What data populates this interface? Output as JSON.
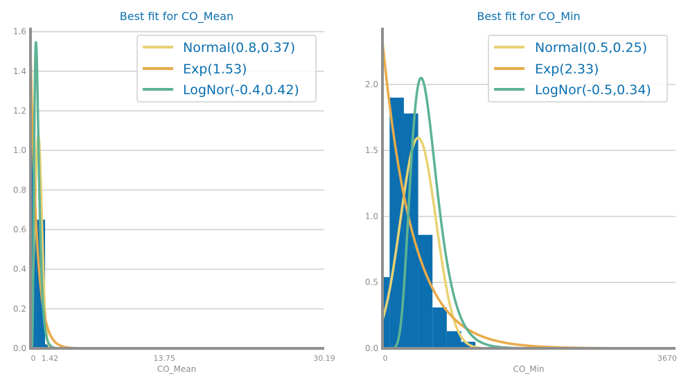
{
  "colors": {
    "bars": "#0b6fb0",
    "normal": "#e8d273",
    "exp": "#e8ab4a",
    "lognorm": "#5db394",
    "text": "#0b6fb0",
    "grid": "#cfcfcf",
    "axis": "#8f8f8f"
  },
  "chart_data": [
    {
      "type": "bar",
      "title": "Best fit for CO_Mean",
      "xlabel": "CO_Mean",
      "ylabel": "",
      "xlim": [
        0,
        30.19
      ],
      "ylim": [
        0,
        1.62
      ],
      "yticks": [
        "0.0",
        "0.2",
        "0.4",
        "0.6",
        "0.8",
        "1.0",
        "1.2",
        "1.4",
        "1.6"
      ],
      "xticks_readable": [
        "13.75",
        "30.19"
      ],
      "xticks_overlapping": [
        "0",
        "1.42"
      ],
      "histogram": {
        "bins": [
          {
            "x0": 0.0,
            "x1": 0.3,
            "value": 1.08
          },
          {
            "x0": 0.3,
            "x1": 0.6,
            "value": 0.62
          },
          {
            "x0": 0.6,
            "x1": 1.5,
            "value": 0.65
          },
          {
            "x0": 1.5,
            "x1": 2.0,
            "value": 0.02
          }
        ]
      },
      "legend": [
        "Normal(0.8,0.37)",
        "Exp(1.53)",
        "LogNor(-0.4,0.42)"
      ],
      "legend_position": "top-right",
      "grid": "horizontal",
      "series": [
        {
          "name": "Normal(0.8,0.37)",
          "dist": "normal",
          "params": [
            0.8,
            0.37
          ]
        },
        {
          "name": "Exp(1.53)",
          "dist": "exp",
          "params": [
            1.53
          ]
        },
        {
          "name": "LogNor(-0.4,0.42)",
          "dist": "lognormal",
          "params": [
            -0.4,
            0.42
          ]
        }
      ]
    },
    {
      "type": "bar",
      "title": "Best fit for CO_Min",
      "xlabel": "CO_Min",
      "ylabel": "",
      "xlim": [
        0,
        4.1
      ],
      "ylim": [
        0,
        2.43
      ],
      "yticks": [
        "0.0",
        "0.5",
        "1.0",
        "1.5",
        "2.0"
      ],
      "xticks_readable": [
        "3670"
      ],
      "xticks_overlapping": [
        "0"
      ],
      "histogram": {
        "bins": [
          {
            "x0": 0.0,
            "x1": 0.1,
            "value": 0.54
          },
          {
            "x0": 0.1,
            "x1": 0.3,
            "value": 1.9
          },
          {
            "x0": 0.3,
            "x1": 0.5,
            "value": 1.78
          },
          {
            "x0": 0.5,
            "x1": 0.7,
            "value": 0.86
          },
          {
            "x0": 0.7,
            "x1": 0.9,
            "value": 0.31
          },
          {
            "x0": 0.9,
            "x1": 1.1,
            "value": 0.13
          },
          {
            "x0": 1.1,
            "x1": 1.3,
            "value": 0.05
          }
        ]
      },
      "legend": [
        "Normal(0.5,0.25)",
        "Exp(2.33)",
        "LogNor(-0.5,0.34)"
      ],
      "legend_position": "top-right",
      "grid": "horizontal",
      "series": [
        {
          "name": "Normal(0.5,0.25)",
          "dist": "normal",
          "params": [
            0.5,
            0.25
          ]
        },
        {
          "name": "Exp(2.33)",
          "dist": "exp",
          "params": [
            2.33
          ]
        },
        {
          "name": "LogNor(-0.5,0.34)",
          "dist": "lognormal",
          "params": [
            -0.5,
            0.34
          ]
        }
      ]
    }
  ]
}
